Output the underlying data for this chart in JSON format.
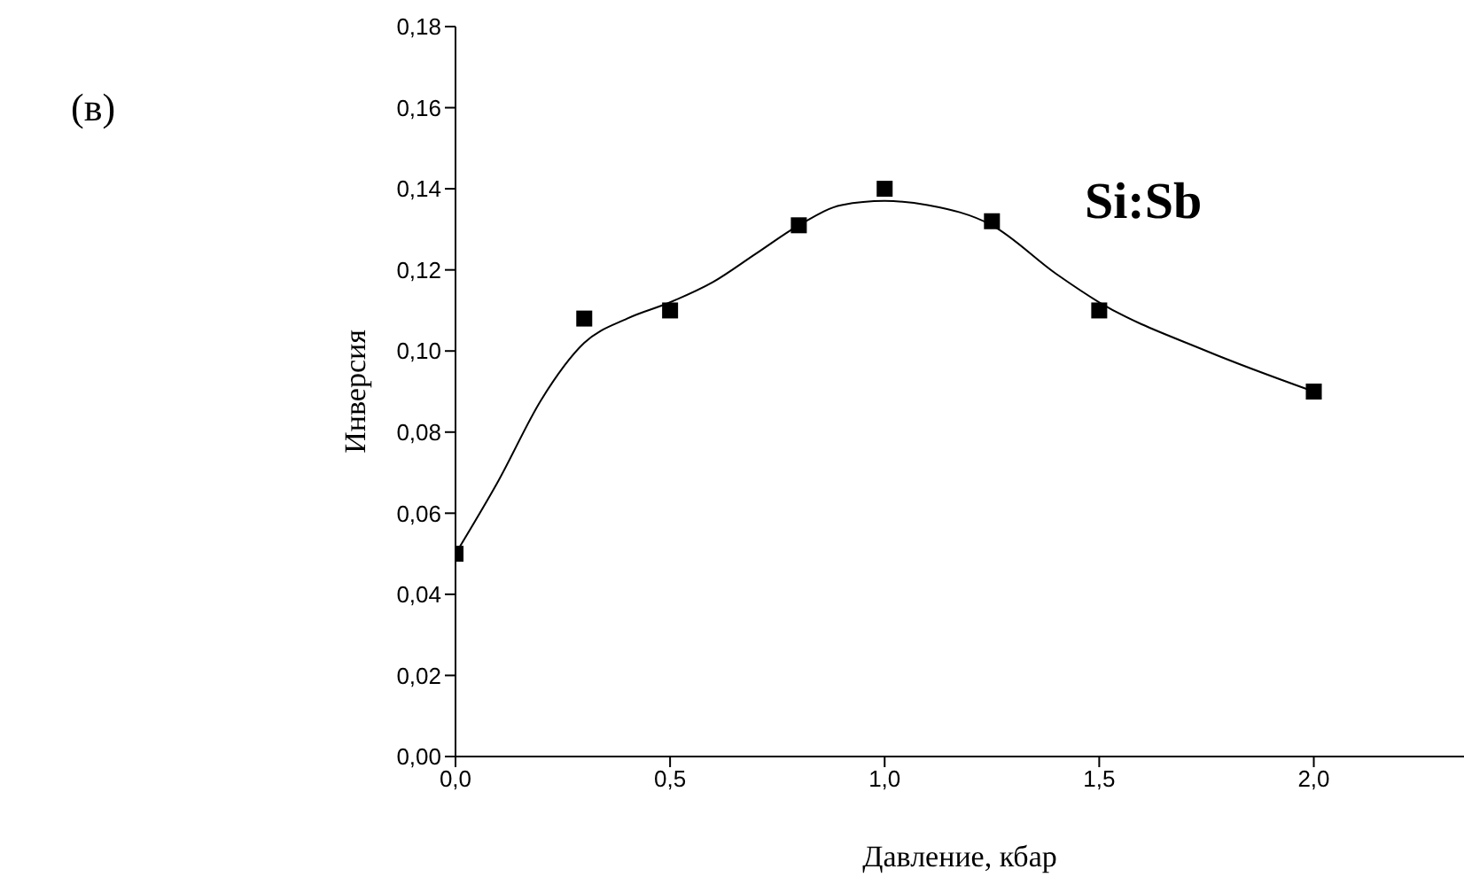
{
  "chart_data": {
    "type": "scatter",
    "xlabel": "Давление, кбар",
    "ylabel": "Инверсия",
    "annotations": [
      "Si:Sb",
      "(в)"
    ],
    "marker": "square",
    "xlim": [
      0,
      2.35
    ],
    "xticks": [
      {
        "value": 0,
        "label": "0,0"
      },
      {
        "value": 0.5,
        "label": "0,5"
      },
      {
        "value": 1,
        "label": "1,0"
      },
      {
        "value": 1.5,
        "label": "1,5"
      },
      {
        "value": 2,
        "label": "2,0"
      }
    ],
    "ylim": [
      0,
      0.18
    ],
    "yticks": [
      {
        "value": 0,
        "label": "0,00"
      },
      {
        "value": 0.02,
        "label": "0,02"
      },
      {
        "value": 0.04,
        "label": "0,04"
      },
      {
        "value": 0.06,
        "label": "0,06"
      },
      {
        "value": 0.08,
        "label": "0,08"
      },
      {
        "value": 0.1,
        "label": "0,10"
      },
      {
        "value": 0.12,
        "label": "0,12"
      },
      {
        "value": 0.14,
        "label": "0,14"
      },
      {
        "value": 0.16,
        "label": "0,16"
      },
      {
        "value": 0.18,
        "label": "0,18"
      }
    ],
    "series": [
      {
        "color": "#000000",
        "x": [
          0,
          0.3,
          0.5,
          0.8,
          1.0,
          1.25,
          1.5,
          2.0
        ],
        "values": [
          0.05,
          0.108,
          0.11,
          0.131,
          0.14,
          0.132,
          0.11,
          0.09
        ]
      },
      {
        "type": "line",
        "color": "#000000",
        "marker": "none",
        "x": [
          0,
          0.1,
          0.2,
          0.3,
          0.4,
          0.5,
          0.6,
          0.7,
          0.8,
          0.9,
          1.0,
          1.1,
          1.25,
          1.4,
          1.5,
          1.75,
          2.0
        ],
        "values": [
          0.05,
          0.068,
          0.088,
          0.102,
          0.108,
          0.112,
          0.117,
          0.124,
          0.131,
          0.136,
          0.137,
          0.136,
          0.131,
          0.119,
          0.112,
          0.1,
          0.09
        ]
      }
    ]
  }
}
